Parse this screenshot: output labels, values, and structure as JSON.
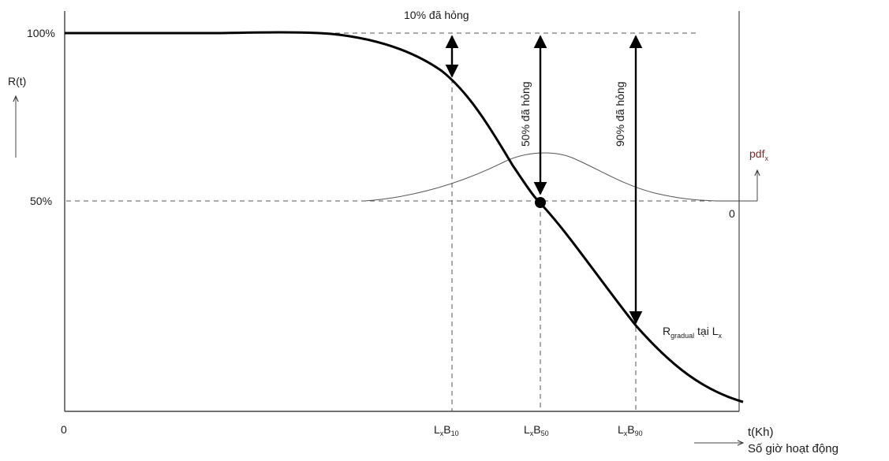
{
  "y_axis": {
    "label": "R(t)",
    "tick_100": "100%",
    "tick_50": "50%"
  },
  "x_axis": {
    "origin": "0",
    "label": "t(Kh)",
    "sublabel": "Số giờ hoạt động",
    "ticks": [
      {
        "main": "L",
        "sub1": "x",
        "main2": "B",
        "sub2": "10"
      },
      {
        "main": "L",
        "sub1": "x",
        "main2": "B",
        "sub2": "50"
      },
      {
        "main": "L",
        "sub1": "x",
        "main2": "B",
        "sub2": "90"
      }
    ]
  },
  "pdf_axis": {
    "label_main": "pdf",
    "label_sub": "x",
    "zero": "0"
  },
  "annotations": {
    "failed_10": "10% đã hỏng",
    "failed_50": "50% đã hỏng",
    "failed_90": "90% đã hỏng",
    "gradual_main": "R",
    "gradual_sub": "gradual",
    "gradual_rest": " tại L",
    "gradual_sub2": "x"
  },
  "colors": {
    "axis": "#222222",
    "curve": "#000000",
    "dashed": "#555555",
    "pdf_curve": "#555555",
    "pdf_label": "#7a2a2a"
  }
}
